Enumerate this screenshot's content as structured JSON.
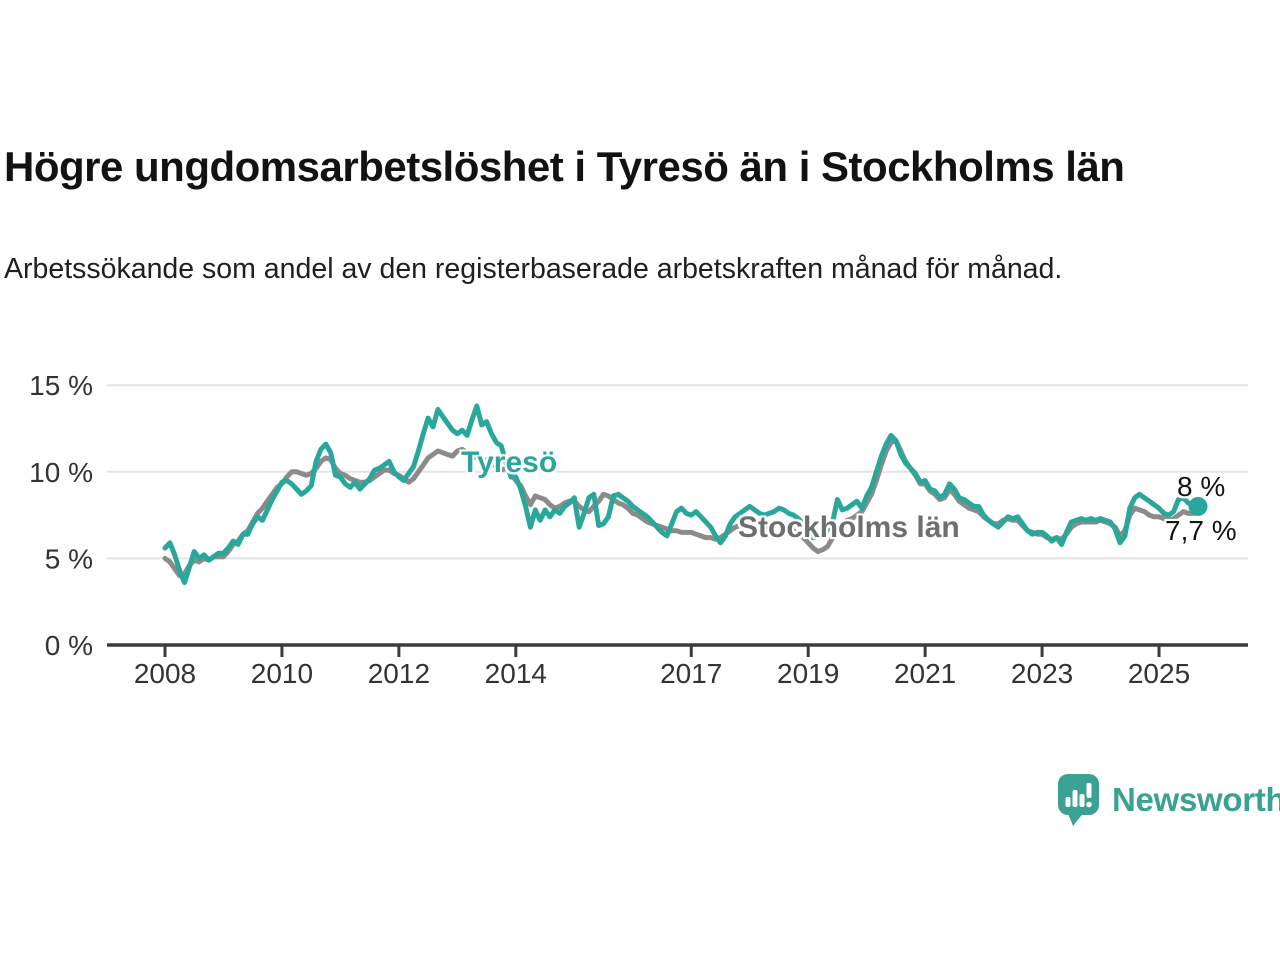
{
  "header": {
    "title": "Högre ungdomsarbetslöshet i Tyresö än i Stockholms län",
    "subtitle": "Arbetssökande som andel av den registerbaserade arbetskraften månad för månad."
  },
  "colors": {
    "tyreso": "#2aa79b",
    "stockholm": "#8b8b8b",
    "stockholm_label": "#6e6e6e",
    "axis_line": "#3c3c3c",
    "axis_text": "#333333",
    "gridline": "#e4e4e4",
    "annotation_text": "#141414",
    "brand_teal": "#3aa193"
  },
  "chart_data": {
    "type": "line",
    "title": "Högre ungdomsarbetslöshet i Tyresö än i Stockholms län",
    "xlabel": "",
    "ylabel": "",
    "unit": "%",
    "frequency": "monthly",
    "x_start": "2008-01",
    "x_end": "2025-09",
    "ylim": [
      0,
      15
    ],
    "grid": true,
    "legend_position": "inline-labels",
    "yticks": [
      {
        "value": 15,
        "label": "15 %"
      },
      {
        "value": 10,
        "label": "10 %"
      },
      {
        "value": 5,
        "label": "5 %"
      },
      {
        "value": 0,
        "label": "0 %"
      }
    ],
    "xticks": [
      {
        "year": 2008,
        "label": "2008"
      },
      {
        "year": 2010,
        "label": "2010"
      },
      {
        "year": 2012,
        "label": "2012"
      },
      {
        "year": 2014,
        "label": "2014"
      },
      {
        "year": 2017,
        "label": "2017"
      },
      {
        "year": 2019,
        "label": "2019"
      },
      {
        "year": 2021,
        "label": "2021"
      },
      {
        "year": 2023,
        "label": "2023"
      },
      {
        "year": 2025,
        "label": "2025"
      }
    ],
    "series": [
      {
        "name": "Tyresö",
        "color": "#2aa79b",
        "end_dot": true,
        "values": [
          5.6,
          5.9,
          5.2,
          4.3,
          3.6,
          4.5,
          5.4,
          5.0,
          5.2,
          4.9,
          5.1,
          5.3,
          5.3,
          5.6,
          6.0,
          5.8,
          6.4,
          6.4,
          7.0,
          7.4,
          7.2,
          7.8,
          8.4,
          8.9,
          9.4,
          9.5,
          9.3,
          9.0,
          8.7,
          8.9,
          9.2,
          10.6,
          11.3,
          11.6,
          11.1,
          9.8,
          9.7,
          9.3,
          9.1,
          9.4,
          9.0,
          9.3,
          9.6,
          10.1,
          10.2,
          10.4,
          10.6,
          10.0,
          9.7,
          9.5,
          9.9,
          10.3,
          11.2,
          12.2,
          13.1,
          12.6,
          13.6,
          13.2,
          12.8,
          12.4,
          12.2,
          12.4,
          12.1,
          13.0,
          13.8,
          12.7,
          12.9,
          12.2,
          11.7,
          11.5,
          10.5,
          9.7,
          9.7,
          9.0,
          8.0,
          6.8,
          7.8,
          7.2,
          7.8,
          7.4,
          7.8,
          7.6,
          8.0,
          8.2,
          8.5,
          6.8,
          7.6,
          8.5,
          8.7,
          6.9,
          7.0,
          7.4,
          8.6,
          8.7,
          8.5,
          8.3,
          8.0,
          7.8,
          7.6,
          7.4,
          7.1,
          6.8,
          6.5,
          6.3,
          7.0,
          7.7,
          7.9,
          7.6,
          7.5,
          7.7,
          7.4,
          7.1,
          6.8,
          6.3,
          5.9,
          6.3,
          7.0,
          7.4,
          7.6,
          7.8,
          8.0,
          7.8,
          7.6,
          7.5,
          7.6,
          7.7,
          7.9,
          7.8,
          7.6,
          7.5,
          7.3,
          7.0,
          6.5,
          6.2,
          6.4,
          6.3,
          6.7,
          7.1,
          8.4,
          7.8,
          7.9,
          8.1,
          8.3,
          7.9,
          8.6,
          9.1,
          10.0,
          10.9,
          11.6,
          12.1,
          11.8,
          11.0,
          10.5,
          10.2,
          9.9,
          9.4,
          9.5,
          9.0,
          8.9,
          8.5,
          8.7,
          9.3,
          9.0,
          8.5,
          8.4,
          8.2,
          8.0,
          8.0,
          7.5,
          7.2,
          7.0,
          6.8,
          7.1,
          7.4,
          7.3,
          7.4,
          7.0,
          6.6,
          6.4,
          6.5,
          6.5,
          6.3,
          6.0,
          6.2,
          5.8,
          6.5,
          7.1,
          7.2,
          7.3,
          7.2,
          7.3,
          7.2,
          7.3,
          7.2,
          7.1,
          6.7,
          5.9,
          6.3,
          7.9,
          8.5,
          8.7,
          8.5,
          8.3,
          8.1,
          7.9,
          7.6,
          7.5,
          7.7,
          8.4,
          8.5,
          8.2,
          8.0,
          8.0
        ]
      },
      {
        "name": "Stockholms län",
        "color": "#8b8b8b",
        "end_dot": false,
        "values": [
          5.0,
          4.8,
          4.4,
          4.0,
          4.1,
          4.6,
          4.9,
          4.8,
          5.0,
          4.9,
          5.1,
          5.1,
          5.1,
          5.4,
          5.8,
          6.0,
          6.4,
          6.6,
          7.1,
          7.6,
          7.9,
          8.3,
          8.7,
          9.1,
          9.3,
          9.7,
          10.0,
          10.0,
          9.9,
          9.8,
          9.9,
          10.2,
          10.6,
          10.8,
          10.7,
          10.2,
          9.9,
          9.8,
          9.6,
          9.5,
          9.4,
          9.4,
          9.5,
          9.7,
          9.9,
          10.1,
          10.1,
          9.9,
          9.8,
          9.6,
          9.4,
          9.6,
          10.0,
          10.4,
          10.8,
          11.0,
          11.2,
          11.1,
          11.0,
          10.9,
          11.2,
          11.3,
          11.1,
          10.9,
          10.8,
          10.6,
          10.7,
          10.5,
          10.3,
          10.1,
          10.2,
          9.9,
          9.5,
          9.2,
          8.6,
          8.1,
          8.6,
          8.5,
          8.4,
          8.1,
          7.9,
          8.0,
          8.2,
          8.3,
          8.3,
          8.0,
          7.8,
          7.7,
          8.0,
          8.3,
          8.7,
          8.6,
          8.4,
          8.2,
          8.1,
          7.9,
          7.6,
          7.5,
          7.3,
          7.1,
          7.0,
          6.9,
          6.8,
          6.7,
          6.6,
          6.6,
          6.5,
          6.5,
          6.5,
          6.4,
          6.3,
          6.2,
          6.2,
          6.1,
          6.2,
          6.4,
          6.6,
          6.8,
          6.9,
          7.0,
          7.1,
          7.0,
          6.9,
          6.8,
          6.9,
          7.0,
          7.1,
          7.0,
          6.8,
          6.6,
          6.4,
          6.2,
          5.9,
          5.6,
          5.4,
          5.5,
          5.7,
          6.2,
          6.8,
          7.0,
          7.2,
          7.3,
          7.5,
          7.7,
          8.2,
          8.7,
          9.5,
          10.4,
          11.2,
          11.7,
          11.8,
          11.2,
          10.6,
          10.2,
          9.8,
          9.3,
          9.3,
          8.9,
          8.7,
          8.4,
          8.5,
          9.0,
          8.7,
          8.3,
          8.1,
          7.9,
          7.8,
          7.7,
          7.4,
          7.2,
          7.0,
          7.0,
          7.2,
          7.3,
          7.2,
          7.2,
          6.9,
          6.6,
          6.5,
          6.4,
          6.4,
          6.2,
          6.1,
          6.2,
          6.1,
          6.4,
          6.8,
          7.0,
          7.1,
          7.1,
          7.1,
          7.1,
          7.2,
          7.1,
          7.0,
          6.8,
          6.3,
          6.6,
          7.5,
          7.9,
          7.8,
          7.7,
          7.5,
          7.4,
          7.4,
          7.3,
          7.2,
          7.3,
          7.5,
          7.7,
          7.6,
          7.6,
          7.7
        ]
      }
    ],
    "annotations": {
      "tyreso_label": "Tyresö",
      "stockholm_label": "Stockholms län",
      "end_value_tyreso": "8 %",
      "end_value_stockholm": "7,7 %"
    }
  },
  "footer": {
    "brand": "Newsworthy"
  }
}
